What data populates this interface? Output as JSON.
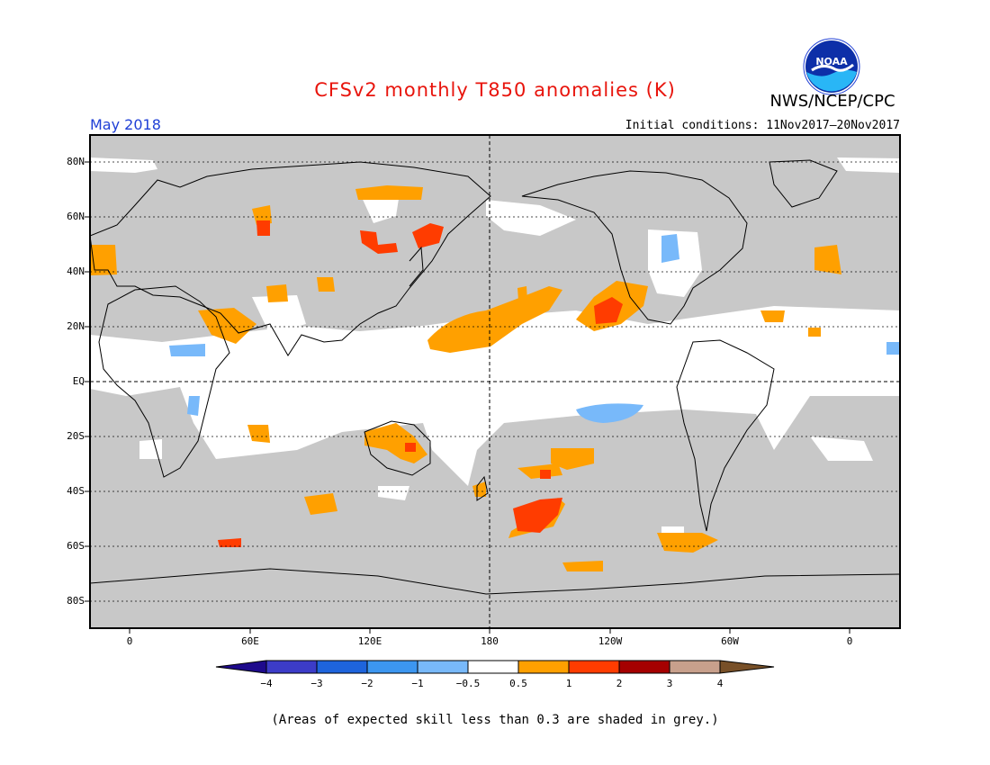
{
  "header": {
    "title": "CFSv2 monthly T850 anomalies (K)",
    "org": "NWS/NCEP/CPC",
    "logo_text": "NOAA",
    "month": "May 2018",
    "initial_conditions": "Initial conditions: 11Nov2017–20Nov2017"
  },
  "map": {
    "lat_labels": [
      "80N",
      "60N",
      "40N",
      "20N",
      "EQ",
      "20S",
      "40S",
      "60S",
      "80S"
    ],
    "lon_labels": [
      "0",
      "60E",
      "120E",
      "180",
      "120W",
      "60W",
      "0"
    ],
    "skill_shade_color": "#c8c8c8",
    "ocean_color": "#ffffff"
  },
  "colorbar": {
    "labels": [
      "−4",
      "−3",
      "−2",
      "−1",
      "−0.5",
      "0.5",
      "1",
      "2",
      "3",
      "4"
    ],
    "colors": [
      "#1e0a8c",
      "#3c3cc8",
      "#1e64dc",
      "#3c96f0",
      "#78b9fa",
      "#ffffff",
      "#ffa000",
      "#ff3c00",
      "#a50000",
      "#c8a08c",
      "#785028"
    ]
  },
  "note": "(Areas of expected skill less than 0.3 are shaded in grey.)"
}
